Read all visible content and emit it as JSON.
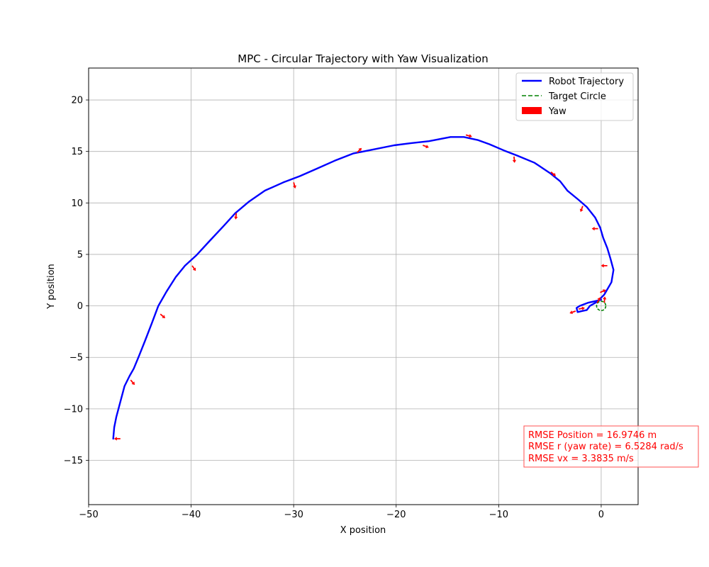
{
  "chart_data": {
    "type": "line",
    "title": "MPC - Circular Trajectory with Yaw Visualization",
    "xlabel": "X position",
    "ylabel": "Y position",
    "xlim": [
      -50,
      3.6
    ],
    "ylim": [
      -19.3,
      23.1
    ],
    "xticks": [
      -50,
      -40,
      -30,
      -20,
      -10,
      0
    ],
    "yticks": [
      -15,
      -10,
      -5,
      0,
      5,
      10,
      15,
      20
    ],
    "grid": true,
    "legend_position": "top-right",
    "legend": [
      {
        "label": "Robot Trajectory",
        "color": "#0000ff",
        "style": "solid"
      },
      {
        "label": "Target Circle",
        "color": "#008000",
        "style": "dashed"
      },
      {
        "label": "Yaw",
        "color": "#ff0000",
        "style": "patch"
      }
    ],
    "series": [
      {
        "name": "Robot Trajectory",
        "color": "#0000ff",
        "points": [
          [
            -47.6,
            -12.9
          ],
          [
            -47.5,
            -11.8
          ],
          [
            -47.3,
            -10.8
          ],
          [
            -46.9,
            -9.3
          ],
          [
            -46.5,
            -7.8
          ],
          [
            -46.0,
            -6.8
          ],
          [
            -45.6,
            -6.1
          ],
          [
            -45.1,
            -4.9
          ],
          [
            -44.5,
            -3.4
          ],
          [
            -43.8,
            -1.6
          ],
          [
            -43.2,
            0.0
          ],
          [
            -42.4,
            1.4
          ],
          [
            -41.5,
            2.8
          ],
          [
            -40.6,
            3.9
          ],
          [
            -39.5,
            4.9
          ],
          [
            -38.3,
            6.2
          ],
          [
            -36.8,
            7.8
          ],
          [
            -35.7,
            9.0
          ],
          [
            -34.4,
            10.1
          ],
          [
            -32.8,
            11.2
          ],
          [
            -31.0,
            12.0
          ],
          [
            -29.4,
            12.6
          ],
          [
            -27.8,
            13.3
          ],
          [
            -26.0,
            14.1
          ],
          [
            -24.2,
            14.8
          ],
          [
            -22.2,
            15.2
          ],
          [
            -20.2,
            15.6
          ],
          [
            -18.6,
            15.8
          ],
          [
            -16.8,
            16.0
          ],
          [
            -14.7,
            16.4
          ],
          [
            -13.4,
            16.4
          ],
          [
            -12.0,
            16.1
          ],
          [
            -10.9,
            15.7
          ],
          [
            -9.5,
            15.1
          ],
          [
            -8.2,
            14.6
          ],
          [
            -6.5,
            13.9
          ],
          [
            -5.0,
            12.9
          ],
          [
            -4.0,
            12.1
          ],
          [
            -3.3,
            11.2
          ],
          [
            -2.2,
            10.3
          ],
          [
            -1.4,
            9.6
          ],
          [
            -0.6,
            8.6
          ],
          [
            -0.1,
            7.6
          ],
          [
            0.2,
            6.6
          ],
          [
            0.6,
            5.6
          ],
          [
            0.9,
            4.6
          ],
          [
            1.2,
            3.5
          ],
          [
            1.0,
            2.3
          ],
          [
            0.3,
            1.1
          ],
          [
            -0.4,
            0.4
          ],
          [
            -1.1,
            0.0
          ],
          [
            -1.4,
            -0.4
          ],
          [
            -1.9,
            -0.5
          ],
          [
            -2.3,
            -0.6
          ],
          [
            -2.4,
            -0.2
          ],
          [
            -2.1,
            0.0
          ],
          [
            -1.3,
            0.3
          ],
          [
            -0.4,
            0.5
          ],
          [
            0.0,
            0.6
          ]
        ]
      },
      {
        "name": "Target Circle",
        "color": "#008000",
        "center": [
          0.0,
          0.0
        ],
        "radius": 0.45
      }
    ],
    "yaw_arrows": [
      [
        -46.9,
        -12.9,
        180
      ],
      [
        -45.9,
        -7.2,
        -50
      ],
      [
        -43.0,
        -0.8,
        -40
      ],
      [
        -39.9,
        3.9,
        -55
      ],
      [
        -35.6,
        9.0,
        -95
      ],
      [
        -30.0,
        12.0,
        -75
      ],
      [
        -23.8,
        14.9,
        45
      ],
      [
        -17.4,
        15.6,
        -20
      ],
      [
        -13.2,
        16.6,
        -15
      ],
      [
        -8.5,
        14.5,
        -85
      ],
      [
        -4.9,
        13.0,
        -40
      ],
      [
        -1.8,
        9.7,
        -110
      ],
      [
        -0.3,
        7.5,
        180
      ],
      [
        0.6,
        3.9,
        180
      ],
      [
        -0.1,
        1.3,
        25
      ],
      [
        0.3,
        0.3,
        85
      ],
      [
        -2.5,
        -0.5,
        200
      ],
      [
        -2.2,
        -0.3,
        10
      ],
      [
        -0.4,
        0.3,
        60
      ]
    ],
    "annotation": {
      "lines": [
        "RMSE Position = 16.9746 m",
        "RMSE r (yaw rate) = 6.5284 rad/s",
        "RMSE vx = 3.3835 m/s"
      ],
      "color": "#ff0000"
    }
  }
}
